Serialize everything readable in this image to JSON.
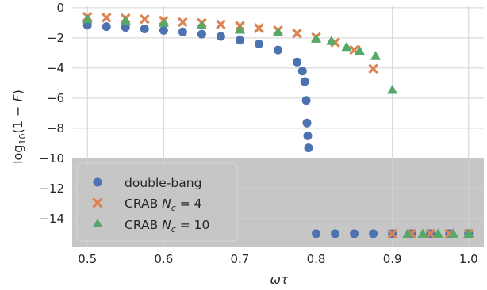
{
  "chart_data": {
    "type": "scatter",
    "xlabel": "ωτ",
    "ylabel": "log10(1 − F)",
    "xlim": [
      0.48,
      1.02
    ],
    "ylim": [
      -15.9,
      0.1
    ],
    "x_ticks": [
      0.5,
      0.6,
      0.7,
      0.8,
      0.9,
      1.0
    ],
    "x_tick_labels": [
      "0.5",
      "0.6",
      "0.7",
      "0.8",
      "0.9",
      "1.0"
    ],
    "y_ticks": [
      0,
      -2,
      -4,
      -6,
      -8,
      -10,
      -12,
      -14
    ],
    "y_tick_labels": [
      "0",
      "−2",
      "−4",
      "−6",
      "−8",
      "−10",
      "−12",
      "−14"
    ],
    "grid": true,
    "shaded_region": {
      "y_from": -15.9,
      "y_to": -10,
      "color": "#c6c6c6"
    },
    "legend": {
      "placement": "lower-left"
    },
    "series": [
      {
        "name": "double-bang",
        "marker": "circle",
        "color": "#4c72b0",
        "x": [
          0.5,
          0.525,
          0.55,
          0.575,
          0.6,
          0.625,
          0.65,
          0.675,
          0.7,
          0.725,
          0.75,
          0.775,
          0.782,
          0.785,
          0.787,
          0.788,
          0.789,
          0.79,
          0.8,
          0.825,
          0.85,
          0.875,
          0.9,
          0.925,
          0.95,
          0.975,
          1.0
        ],
        "y": [
          -1.15,
          -1.25,
          -1.3,
          -1.4,
          -1.5,
          -1.6,
          -1.75,
          -1.9,
          -2.15,
          -2.4,
          -2.8,
          -3.6,
          -4.2,
          -4.9,
          -6.15,
          -7.65,
          -8.5,
          -9.3,
          -15.0,
          -15.0,
          -15.0,
          -15.0,
          -15.0,
          -15.0,
          -15.0,
          -15.0,
          -15.0
        ]
      },
      {
        "name": "CRAB N_c = 4",
        "marker": "x",
        "color": "#dd8452",
        "x": [
          0.5,
          0.525,
          0.55,
          0.575,
          0.6,
          0.625,
          0.65,
          0.675,
          0.7,
          0.725,
          0.75,
          0.775,
          0.8,
          0.825,
          0.85,
          0.875,
          0.9,
          0.925,
          0.95,
          0.975,
          1.0
        ],
        "y": [
          -0.6,
          -0.65,
          -0.7,
          -0.75,
          -0.85,
          -0.95,
          -1.0,
          -1.1,
          -1.2,
          -1.35,
          -1.5,
          -1.7,
          -1.95,
          -2.3,
          -2.8,
          -4.05,
          -15.0,
          -15.0,
          -15.0,
          -15.0,
          -15.0
        ]
      },
      {
        "name": "CRAB N_c = 10",
        "marker": "triangle",
        "color": "#55a868",
        "x": [
          0.5,
          0.55,
          0.6,
          0.65,
          0.7,
          0.75,
          0.8,
          0.82,
          0.84,
          0.857,
          0.878,
          0.9,
          0.92,
          0.94,
          0.96,
          0.98,
          1.0
        ],
        "y": [
          -0.75,
          -0.85,
          -1.0,
          -1.15,
          -1.45,
          -1.6,
          -2.05,
          -2.2,
          -2.6,
          -2.85,
          -3.2,
          -5.45,
          -15.0,
          -15.0,
          -15.0,
          -15.0,
          -15.0
        ]
      }
    ]
  }
}
